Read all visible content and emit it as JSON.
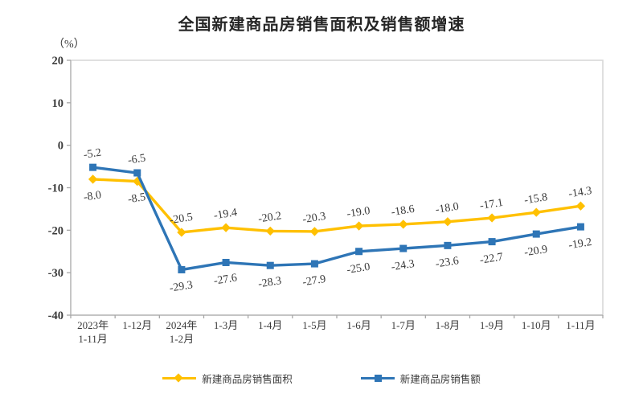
{
  "title": "全国新建商品房销售面积及销售额增速",
  "colors": {
    "series_area": "#FFC000",
    "series_amount": "#2E75B6",
    "plot_border": "#D9D9D9",
    "axis_line": "#B7B7B7",
    "tick": "#A6A6A6",
    "text": "#3A3A3A"
  },
  "chart_data": {
    "type": "line",
    "title": "全国新建商品房销售面积及销售额增速",
    "ylabel": "（%）",
    "xlabel": "",
    "ylim": [
      -40,
      20
    ],
    "yticks": [
      20,
      10,
      0,
      -10,
      -20,
      -30,
      -40
    ],
    "grid": false,
    "legend_position": "bottom",
    "data_labels": true,
    "categories": [
      "2023年\n1-11月",
      "1-12月",
      "2024年\n1-2月",
      "1-3月",
      "1-4月",
      "1-5月",
      "1-6月",
      "1-7月",
      "1-8月",
      "1-9月",
      "1-10月",
      "1-11月"
    ],
    "series": [
      {
        "name": "新建商品房销售面积",
        "marker": "diamond",
        "color": "#FFC000",
        "values": [
          -8.0,
          -8.5,
          -20.5,
          -19.4,
          -20.2,
          -20.3,
          -19.0,
          -18.6,
          -18.0,
          -17.1,
          -15.8,
          -14.3
        ]
      },
      {
        "name": "新建商品房销售额",
        "marker": "square",
        "color": "#2E75B6",
        "values": [
          -5.2,
          -6.5,
          -29.3,
          -27.6,
          -28.3,
          -27.9,
          -25.0,
          -24.3,
          -23.6,
          -22.7,
          -20.9,
          -19.2
        ]
      }
    ]
  }
}
